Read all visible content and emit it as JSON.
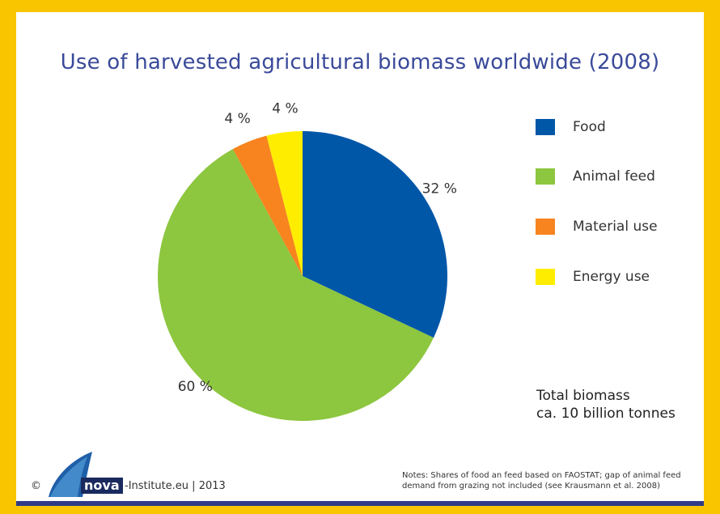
{
  "title": "Use of harvested agricultural biomass worldwide (2008)",
  "chart_data": {
    "type": "pie",
    "title": "Use of harvested agricultural biomass worldwide (2008)",
    "slices": [
      {
        "label": "Food",
        "value": 32,
        "display": "32 %",
        "color": "#0057a8"
      },
      {
        "label": "Animal feed",
        "value": 60,
        "display": "60 %",
        "color": "#8dc63f"
      },
      {
        "label": "Material use",
        "value": 4,
        "display": "4 %",
        "color": "#f7841f"
      },
      {
        "label": "Energy use",
        "value": 4,
        "display": "4 %",
        "color": "#ffed00"
      }
    ],
    "legend_position": "right"
  },
  "total_note": {
    "line1": "Total biomass",
    "line2": "ca. 10 billion tonnes"
  },
  "footer": {
    "copyright": "©",
    "logo_text": "nova",
    "site": "-Institute.eu | 2013",
    "notes": "Notes: Shares of food an feed based on FAOSTAT; gap of animal feed demand from grazing not included (see Krausmann et al. 2008)"
  },
  "colors": {
    "frame": "#f9c400",
    "title": "#3a4a9a",
    "bottom_bar": "#2f3b87"
  }
}
